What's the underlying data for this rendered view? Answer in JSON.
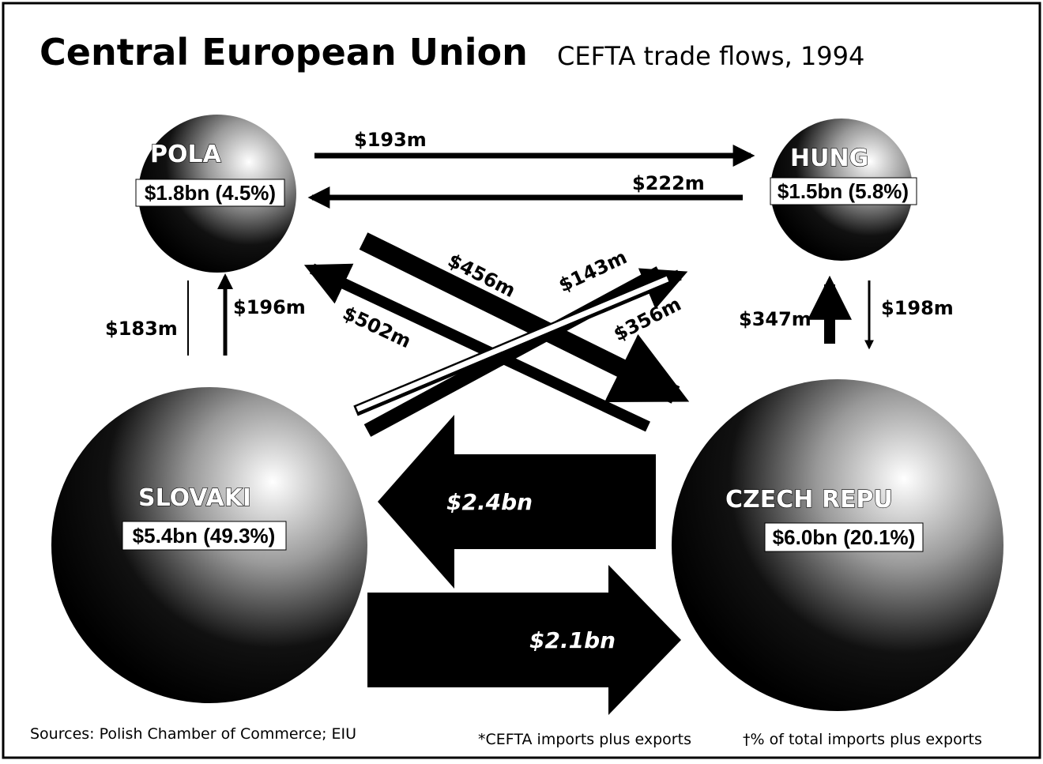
{
  "header": {
    "title": "Central European Union",
    "subtitle": "CEFTA trade flows, 1994"
  },
  "nodes": [
    {
      "name": "POLA",
      "label": "$1.8bn (4.5%)"
    },
    {
      "name": "HUNG",
      "label": "$1.5bn (5.8%)"
    },
    {
      "name": "SLOVAKI",
      "label": "$5.4bn (49.3%)"
    },
    {
      "name": "CZECH REPU",
      "label": "$6.0bn (20.1%)"
    }
  ],
  "flows": [
    "$193m",
    "$222m",
    "$456m",
    "$143m",
    "$502m",
    "$356m",
    "$183m",
    "$196m",
    "$347m",
    "$198m",
    "$2.4bn",
    "$2.1bn"
  ],
  "footer": {
    "sources": "Sources: Polish Chamber of Commerce; EIU",
    "note1": "*CEFTA imports plus exports",
    "note2": "†% of total imports plus exports"
  }
}
